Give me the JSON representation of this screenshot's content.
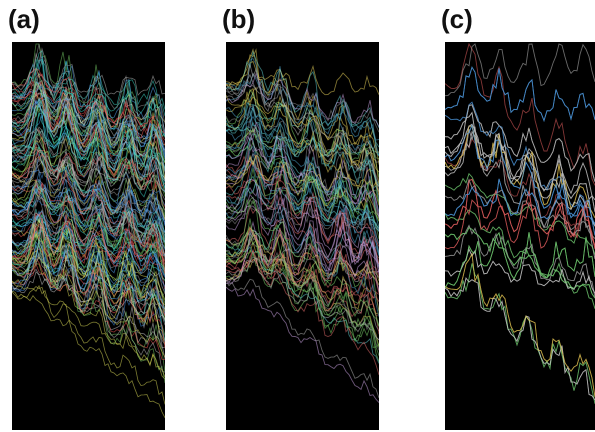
{
  "panels": [
    {
      "label": "(a)",
      "texture": "dense",
      "palette": [
        "#bdbdbd",
        "#9e9e9e",
        "#3f8fe8",
        "#5ab0ff",
        "#40e0d0",
        "#e0e05a",
        "#ff5a5a",
        "#7ad46a",
        "#c8c8c8"
      ]
    },
    {
      "label": "(b)",
      "texture": "medium",
      "palette": [
        "#b0b0b0",
        "#8c8c8c",
        "#4aa0c8",
        "#7ad46a",
        "#e6d05a",
        "#e06a6a",
        "#c8a0e0",
        "#5fd0d0"
      ]
    },
    {
      "label": "(c)",
      "texture": "sparse",
      "palette": [
        "#c0c0c0",
        "#9a9a9a",
        "#4a8fd0",
        "#6ac06a",
        "#e0c050",
        "#d85a5a",
        "#b0b0b0",
        "#d0d0d0"
      ]
    }
  ]
}
